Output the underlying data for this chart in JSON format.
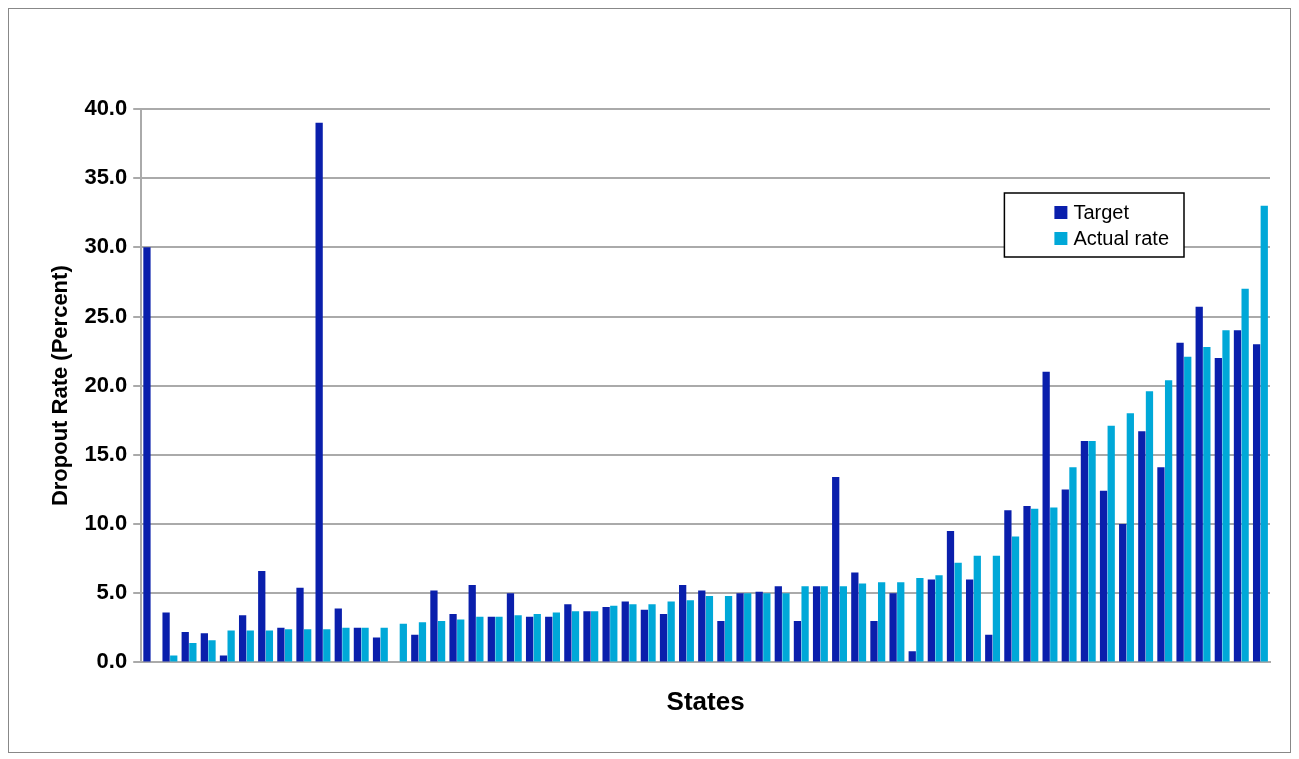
{
  "chart_data": {
    "type": "bar",
    "xlabel": "States",
    "ylabel": "Dropout Rate (Percent)",
    "categories": [
      null,
      null,
      null,
      null,
      null,
      null,
      null,
      null,
      null,
      null,
      null,
      null,
      null,
      null,
      null,
      null,
      null,
      null,
      null,
      null,
      null,
      null,
      null,
      null,
      null,
      null,
      null,
      null,
      null,
      null,
      null,
      null,
      null,
      null,
      null,
      null,
      null,
      null,
      null,
      null,
      null,
      null,
      null,
      null,
      null,
      null,
      null,
      null,
      null,
      null,
      null,
      null,
      null,
      null,
      null,
      null,
      null,
      null,
      null
    ],
    "series": [
      {
        "name": "Target",
        "color": "#0a1fac",
        "values": [
          30,
          3.6,
          2.2,
          2.1,
          0.5,
          3.4,
          6.6,
          2.5,
          5.4,
          39,
          3.9,
          2.5,
          1.8,
          null,
          2.0,
          5.2,
          3.5,
          5.6,
          3.3,
          5.0,
          3.3,
          3.3,
          4.2,
          3.7,
          4.0,
          4.4,
          3.8,
          3.5,
          5.6,
          5.2,
          3.0,
          5.0,
          5.1,
          5.5,
          3.0,
          5.5,
          13.4,
          6.5,
          3.0,
          5.0,
          0.8,
          6.0,
          9.5,
          6.0,
          2.0,
          11.0,
          11.3,
          21.0,
          12.5,
          16.0,
          12.4,
          10.0,
          16.7,
          14.1,
          23.1,
          25.7,
          22.0,
          24.0,
          23.0
        ]
      },
      {
        "name": "Actual rate",
        "color": "#00a8d8",
        "values": [
          null,
          0.5,
          1.4,
          1.6,
          2.3,
          2.3,
          2.3,
          2.4,
          2.4,
          2.4,
          2.5,
          2.5,
          2.5,
          2.8,
          2.9,
          3.0,
          3.1,
          3.3,
          3.3,
          3.4,
          3.5,
          3.6,
          3.7,
          3.7,
          4.1,
          4.2,
          4.2,
          4.4,
          4.5,
          4.8,
          4.8,
          5.0,
          5.0,
          5.0,
          5.5,
          5.5,
          5.5,
          5.7,
          5.8,
          5.8,
          6.1,
          6.3,
          7.2,
          7.7,
          7.7,
          9.1,
          11.1,
          11.2,
          14.1,
          16.0,
          17.1,
          18.0,
          19.6,
          20.4,
          22.1,
          22.8,
          24.0,
          27.0,
          33.0
        ]
      }
    ],
    "ylim": [
      0,
      40
    ],
    "yticks": [
      {
        "value": 0,
        "label": "0.0"
      },
      {
        "value": 5,
        "label": "5.0"
      },
      {
        "value": 10,
        "label": "10.0"
      },
      {
        "value": 15,
        "label": "15.0"
      },
      {
        "value": 20,
        "label": "20.0"
      },
      {
        "value": 25,
        "label": "25.0"
      },
      {
        "value": 30,
        "label": "30.0"
      },
      {
        "value": 35,
        "label": "35.0"
      },
      {
        "value": 40,
        "label": "40.0"
      }
    ],
    "grid": "y",
    "legend": "top right"
  }
}
